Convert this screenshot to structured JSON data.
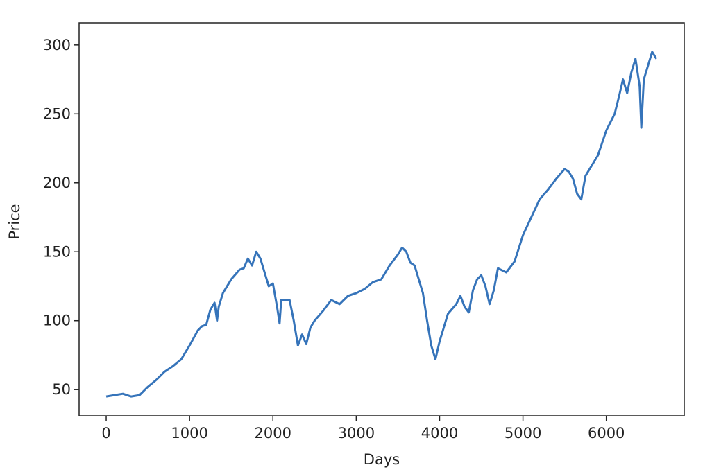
{
  "chart_data": {
    "type": "line",
    "xlabel": "Days",
    "ylabel": "Price",
    "x": [
      0,
      100,
      200,
      300,
      400,
      500,
      600,
      700,
      800,
      900,
      1000,
      1100,
      1150,
      1200,
      1250,
      1300,
      1330,
      1350,
      1400,
      1500,
      1600,
      1650,
      1700,
      1750,
      1800,
      1850,
      1900,
      1950,
      2000,
      2050,
      2080,
      2100,
      2200,
      2250,
      2300,
      2350,
      2400,
      2450,
      2500,
      2600,
      2700,
      2800,
      2900,
      3000,
      3100,
      3200,
      3300,
      3400,
      3500,
      3550,
      3600,
      3650,
      3700,
      3750,
      3800,
      3850,
      3900,
      3950,
      4000,
      4050,
      4100,
      4200,
      4250,
      4300,
      4350,
      4400,
      4450,
      4500,
      4550,
      4600,
      4650,
      4700,
      4800,
      4900,
      5000,
      5100,
      5200,
      5300,
      5400,
      5500,
      5550,
      5600,
      5650,
      5700,
      5750,
      5800,
      5900,
      6000,
      6100,
      6150,
      6200,
      6250,
      6300,
      6350,
      6400,
      6420,
      6450,
      6500,
      6550,
      6600
    ],
    "values": [
      45,
      46,
      47,
      45,
      46,
      52,
      57,
      63,
      67,
      72,
      82,
      93,
      96,
      97,
      108,
      113,
      100,
      110,
      120,
      130,
      137,
      138,
      145,
      140,
      150,
      145,
      135,
      125,
      127,
      110,
      98,
      115,
      115,
      100,
      82,
      90,
      83,
      95,
      100,
      107,
      115,
      112,
      118,
      120,
      123,
      128,
      130,
      140,
      148,
      153,
      150,
      142,
      140,
      130,
      120,
      100,
      82,
      72,
      85,
      95,
      105,
      112,
      118,
      110,
      106,
      122,
      130,
      133,
      125,
      112,
      122,
      138,
      135,
      143,
      162,
      175,
      188,
      195,
      203,
      210,
      208,
      203,
      192,
      188,
      205,
      210,
      220,
      238,
      250,
      262,
      275,
      265,
      280,
      290,
      270,
      240,
      275,
      285,
      295,
      290
    ],
    "color": "#3674ba",
    "xlim": [
      -325,
      6935
    ],
    "ylim": [
      31,
      316
    ],
    "xticks": [
      0,
      1000,
      2000,
      3000,
      4000,
      5000,
      6000
    ],
    "yticks": [
      50,
      100,
      150,
      200,
      250,
      300
    ]
  }
}
